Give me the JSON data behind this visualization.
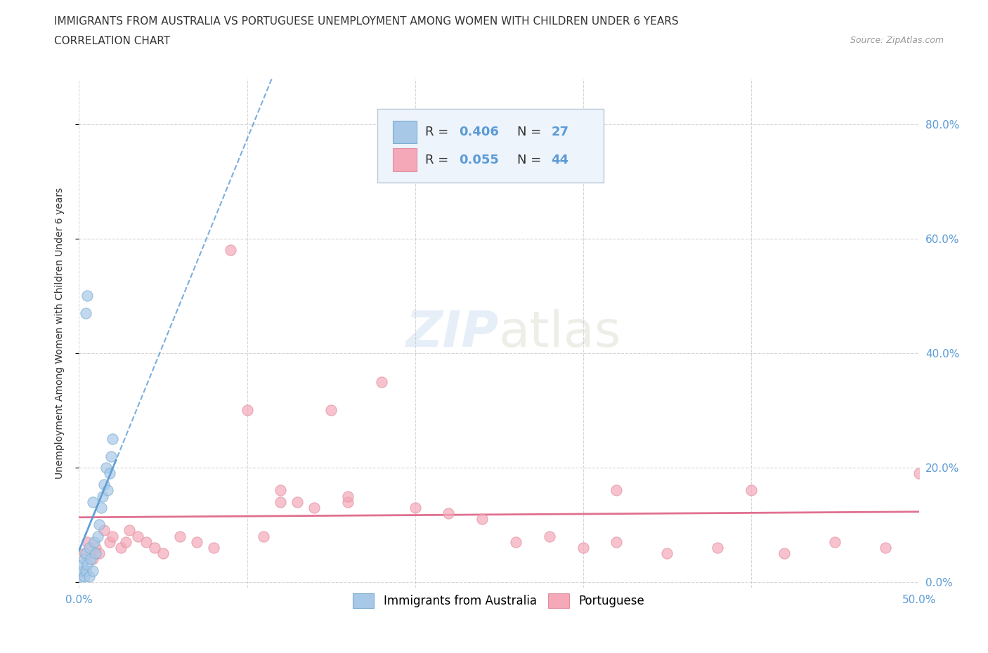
{
  "title_line1": "IMMIGRANTS FROM AUSTRALIA VS PORTUGUESE UNEMPLOYMENT AMONG WOMEN WITH CHILDREN UNDER 6 YEARS",
  "title_line2": "CORRELATION CHART",
  "source": "Source: ZipAtlas.com",
  "ylabel": "Unemployment Among Women with Children Under 6 years",
  "xlim": [
    0.0,
    0.5
  ],
  "ylim": [
    -0.01,
    0.88
  ],
  "xtick_vals": [
    0.0,
    0.1,
    0.2,
    0.3,
    0.4,
    0.5
  ],
  "ytick_vals": [
    0.0,
    0.2,
    0.4,
    0.6,
    0.8
  ],
  "ytick_labels": [
    "0.0%",
    "20.0%",
    "40.0%",
    "60.0%",
    "80.0%"
  ],
  "xtick_labels": [
    "0.0%",
    "",
    "",
    "",
    "",
    "50.0%"
  ],
  "background_color": "#ffffff",
  "grid_color": "#cccccc",
  "blue_color": "#a8c8e8",
  "pink_color": "#f4a8b8",
  "blue_line_color": "#5b9bd5",
  "pink_line_color": "#e07090",
  "legend_box_color": "#e8f0fb",
  "blue_scatter_x": [
    0.001,
    0.002,
    0.003,
    0.004,
    0.005,
    0.006,
    0.007,
    0.008,
    0.009,
    0.01,
    0.011,
    0.012,
    0.013,
    0.014,
    0.015,
    0.016,
    0.017,
    0.018,
    0.019,
    0.02,
    0.021,
    0.022,
    0.005,
    0.006,
    0.01,
    0.015,
    0.02
  ],
  "blue_scatter_y": [
    0.01,
    0.02,
    0.03,
    0.02,
    0.01,
    0.03,
    0.04,
    0.02,
    0.01,
    0.05,
    0.03,
    0.06,
    0.04,
    0.07,
    0.08,
    0.1,
    0.12,
    0.14,
    0.16,
    0.17,
    0.18,
    0.2,
    0.47,
    0.5,
    0.15,
    0.19,
    0.22
  ],
  "pink_scatter_x": [
    0.005,
    0.01,
    0.015,
    0.018,
    0.022,
    0.025,
    0.03,
    0.035,
    0.04,
    0.045,
    0.05,
    0.055,
    0.06,
    0.065,
    0.07,
    0.08,
    0.09,
    0.1,
    0.11,
    0.12,
    0.14,
    0.15,
    0.16,
    0.17,
    0.18,
    0.19,
    0.2,
    0.21,
    0.22,
    0.24,
    0.26,
    0.28,
    0.3,
    0.32,
    0.34,
    0.36,
    0.38,
    0.4,
    0.42,
    0.44,
    0.46,
    0.48,
    0.5,
    0.12
  ],
  "pink_scatter_y": [
    0.06,
    0.04,
    0.08,
    0.05,
    0.07,
    0.06,
    0.09,
    0.08,
    0.07,
    0.06,
    0.05,
    0.08,
    0.07,
    0.06,
    0.09,
    0.08,
    0.1,
    0.09,
    0.58,
    0.3,
    0.14,
    0.16,
    0.13,
    0.15,
    0.35,
    0.12,
    0.13,
    0.1,
    0.14,
    0.11,
    0.07,
    0.08,
    0.06,
    0.07,
    0.05,
    0.06,
    0.04,
    0.16,
    0.05,
    0.07,
    0.06,
    0.05,
    0.19,
    0.15
  ]
}
